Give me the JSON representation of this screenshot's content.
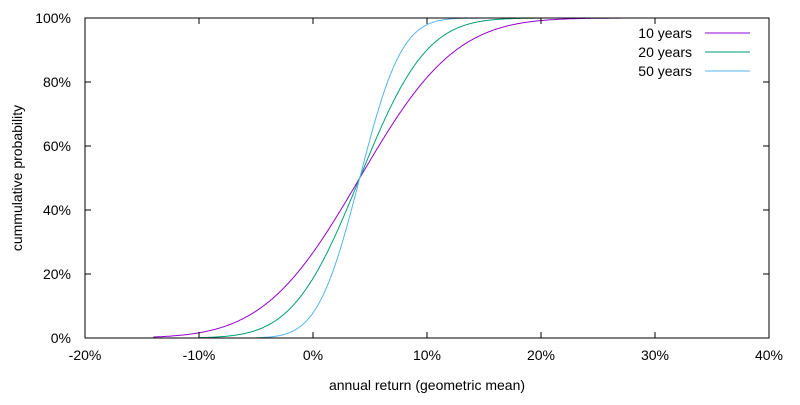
{
  "chart_data": {
    "type": "line",
    "title": "",
    "xlabel": "annual return (geometric mean)",
    "ylabel": "cummulative probability",
    "xlim": [
      -20,
      40
    ],
    "ylim": [
      0,
      100
    ],
    "xticks": [
      "-20%",
      "-10%",
      "0%",
      "10%",
      "20%",
      "30%",
      "40%"
    ],
    "xtick_values": [
      -20,
      -10,
      0,
      10,
      20,
      30,
      40
    ],
    "yticks": [
      "0%",
      "20%",
      "40%",
      "60%",
      "80%",
      "100%"
    ],
    "ytick_values": [
      0,
      20,
      40,
      60,
      80,
      100
    ],
    "grid": false,
    "legend_position": "top-right",
    "series": [
      {
        "name": "10 years",
        "color": "#9400d3",
        "distribution": "normal-cdf",
        "mean": 4.1,
        "std": 6.6,
        "x_range": [
          -14,
          27
        ]
      },
      {
        "name": "20 years",
        "color": "#009e73",
        "distribution": "normal-cdf",
        "mean": 4.1,
        "std": 4.6,
        "x_range": [
          -10,
          20
        ]
      },
      {
        "name": "50 years",
        "color": "#56b4e9",
        "distribution": "normal-cdf",
        "mean": 4.1,
        "std": 2.9,
        "x_range": [
          -5,
          20
        ]
      }
    ]
  }
}
